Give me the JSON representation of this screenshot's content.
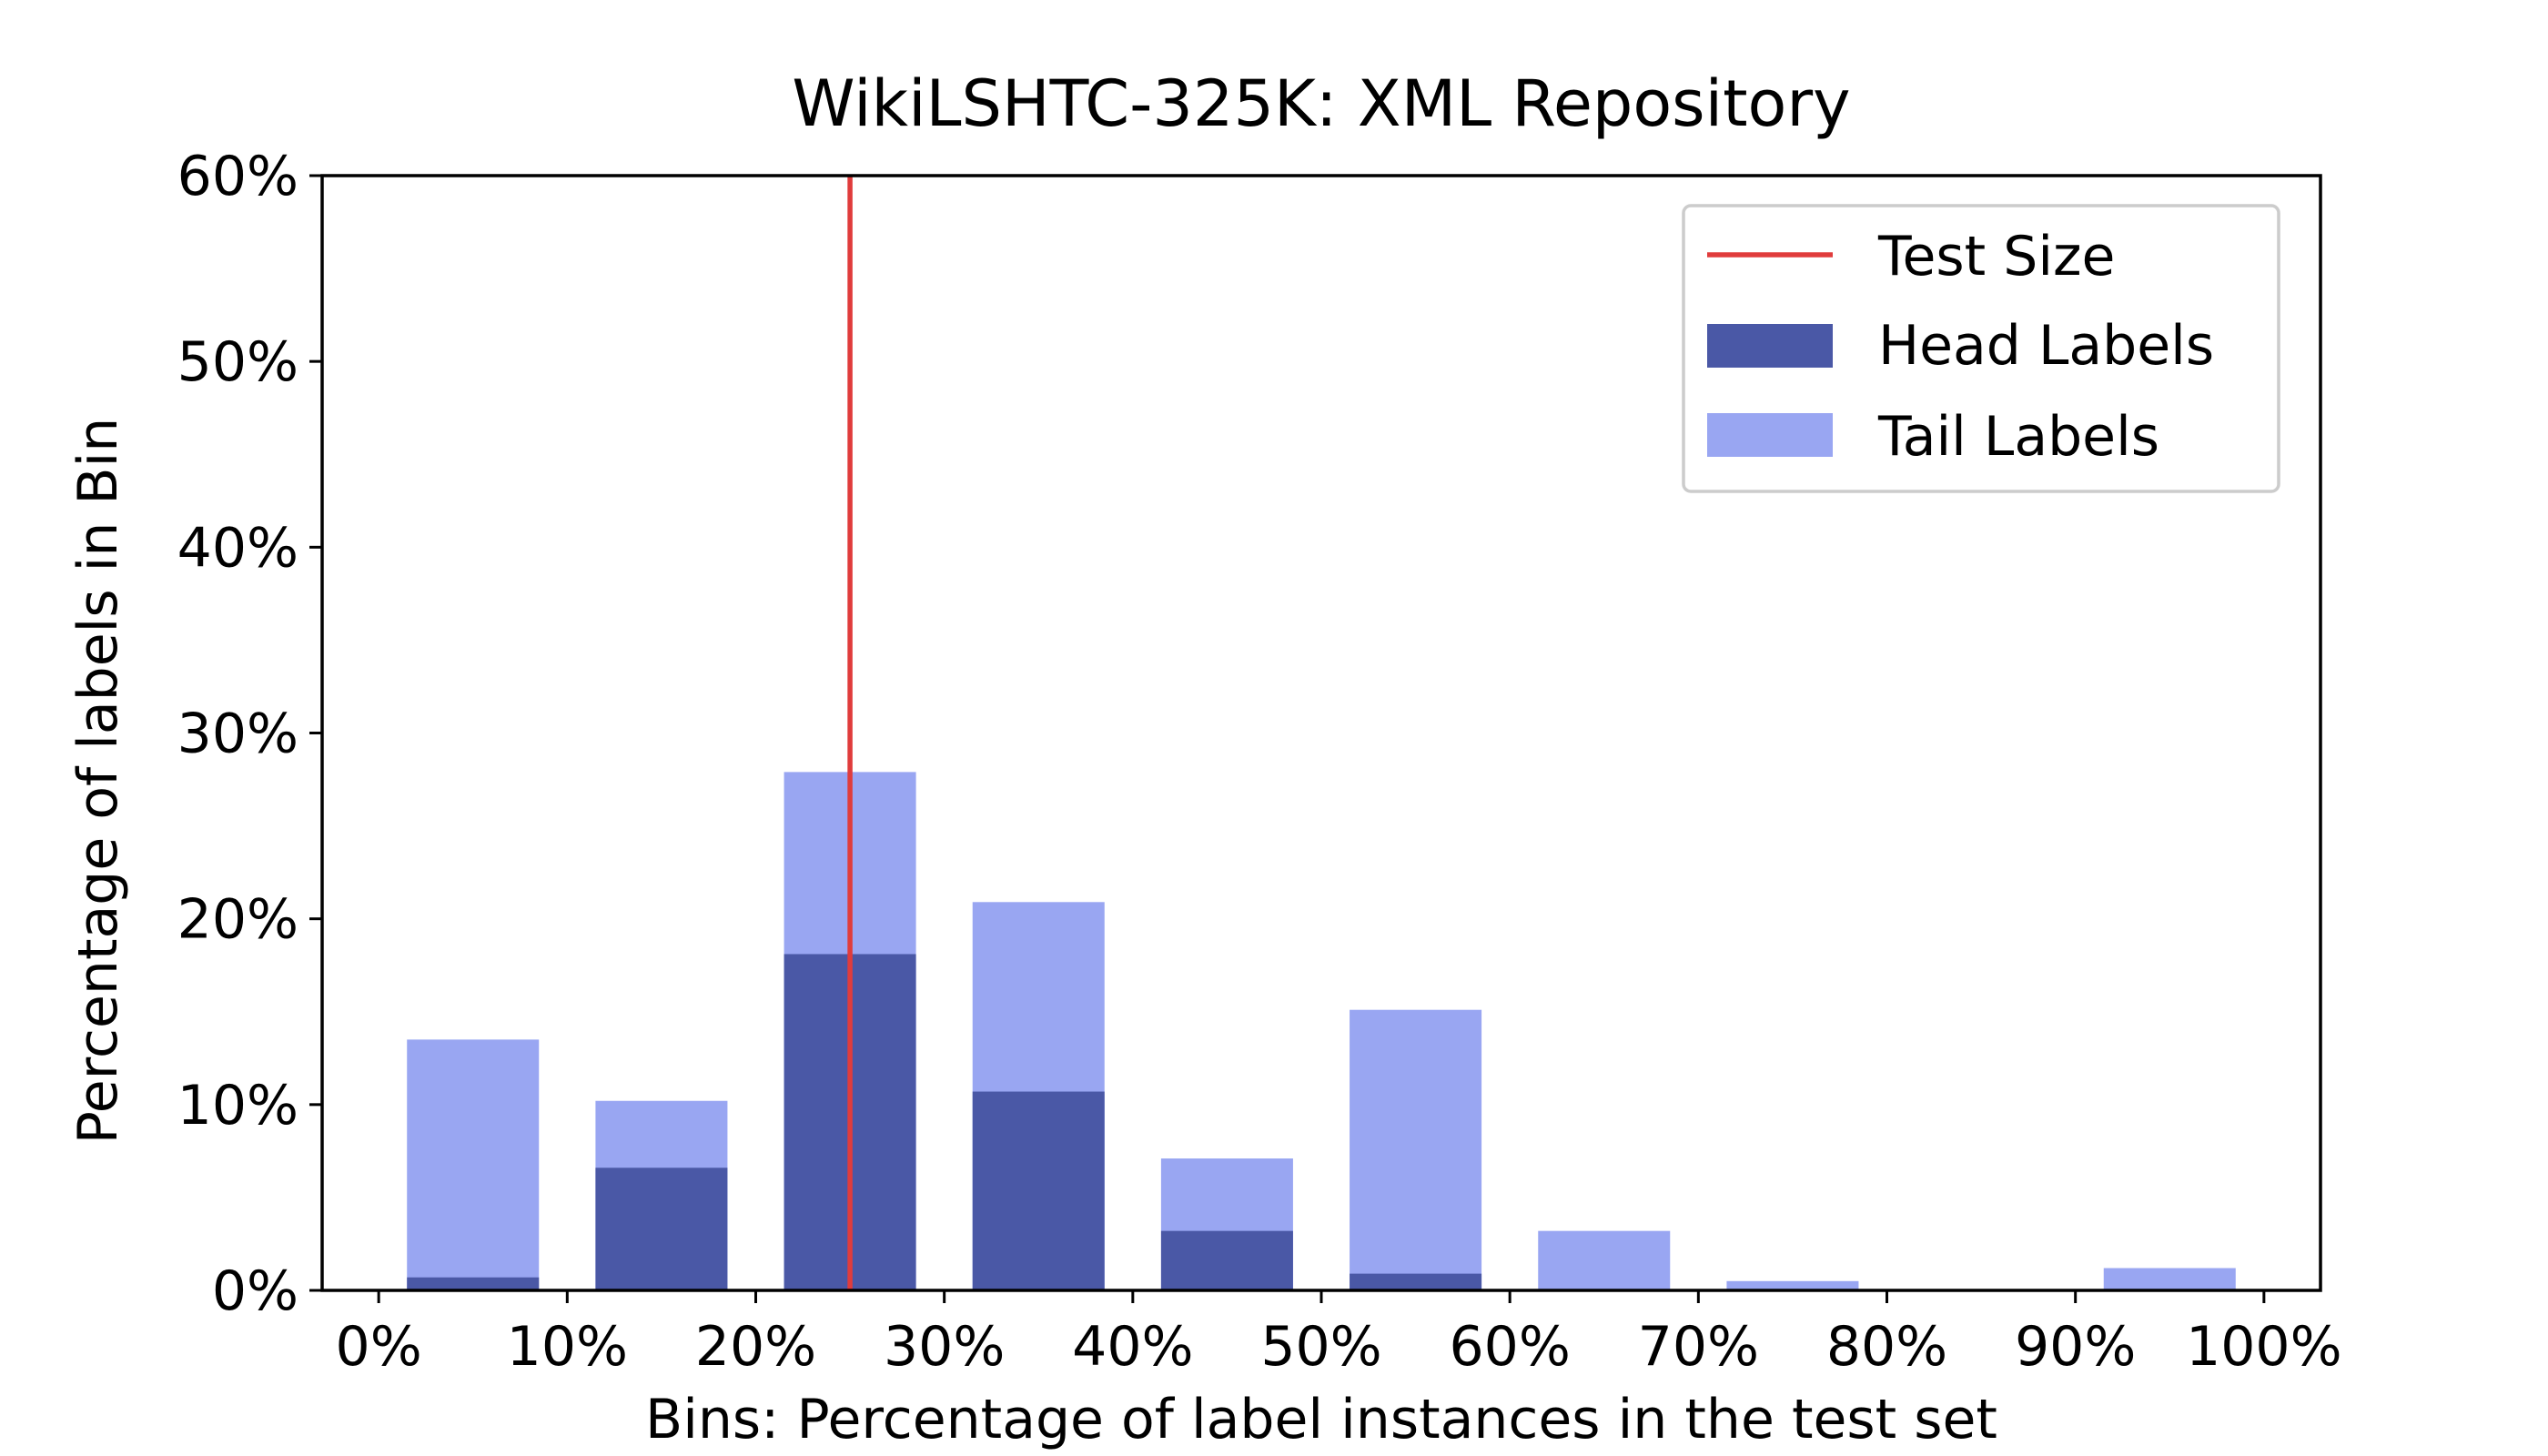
{
  "chart_data": {
    "type": "bar",
    "title": "WikiLSHTC-325K: XML Repository",
    "xlabel": "Bins: Percentage of label instances in the test set",
    "ylabel": "Percentage of labels in Bin",
    "xlim": [
      -0.03,
      1.03
    ],
    "ylim": [
      0,
      0.6
    ],
    "xticks": [
      0,
      0.1,
      0.2,
      0.3,
      0.4,
      0.5,
      0.6,
      0.7,
      0.8,
      0.9,
      1.0
    ],
    "xtick_labels": [
      "0%",
      "10%",
      "20%",
      "30%",
      "40%",
      "50%",
      "60%",
      "70%",
      "80%",
      "90%",
      "100%"
    ],
    "yticks": [
      0,
      0.1,
      0.2,
      0.3,
      0.4,
      0.5,
      0.6
    ],
    "ytick_labels": [
      "0%",
      "10%",
      "20%",
      "30%",
      "40%",
      "50%",
      "60%"
    ],
    "bin_centers": [
      0.05,
      0.15,
      0.25,
      0.35,
      0.45,
      0.55,
      0.65,
      0.75,
      0.85,
      0.95
    ],
    "bar_width": 0.07,
    "series": [
      {
        "name": "Tail Labels",
        "color": "#99a6f2",
        "values": [
          0.135,
          0.102,
          0.279,
          0.209,
          0.071,
          0.151,
          0.032,
          0.005,
          0.0,
          0.012
        ]
      },
      {
        "name": "Head Labels",
        "color": "#4a58a6",
        "values": [
          0.007,
          0.066,
          0.181,
          0.107,
          0.032,
          0.009,
          0.0,
          0.0,
          0.0,
          0.0
        ]
      }
    ],
    "reference_line": {
      "name": "Test Size",
      "x": 0.25,
      "color": "#e03c3c"
    },
    "legend_position": "top-right",
    "grid": false
  }
}
